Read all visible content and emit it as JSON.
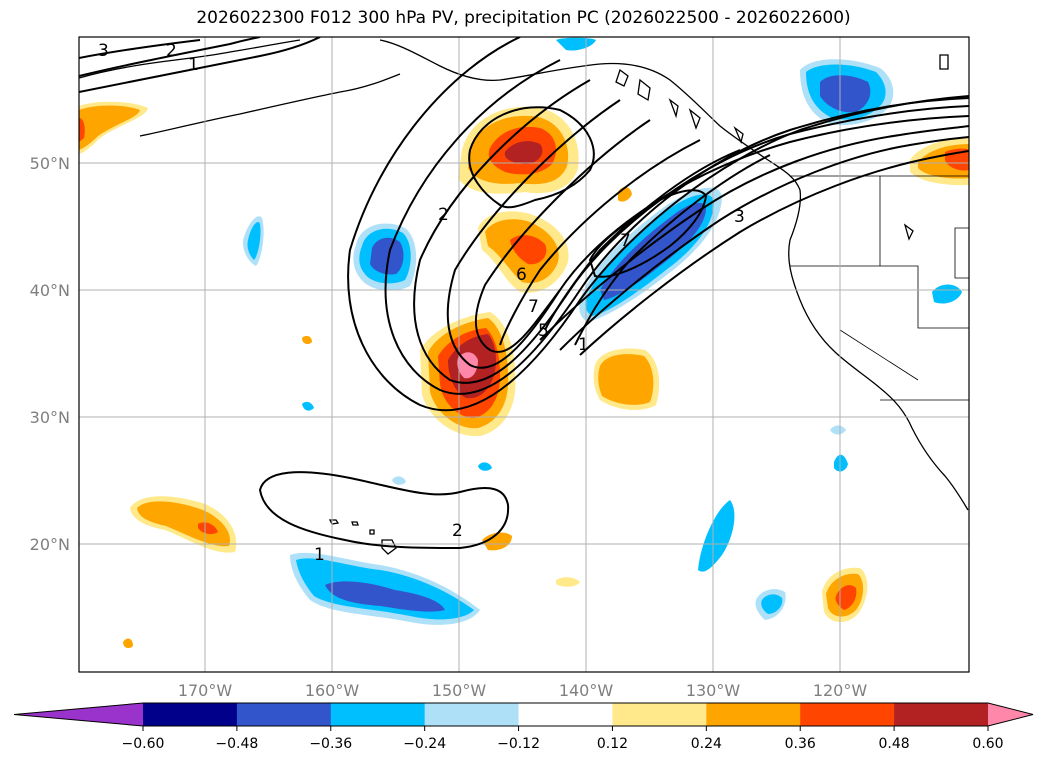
{
  "title": "2026022300 F012 300 hPa PV, precipitation PC (2026022500 - 2026022600)",
  "lat_labels": [
    "50°N",
    "40°N",
    "30°N",
    "20°N"
  ],
  "lon_labels": [
    "170°W",
    "160°W",
    "150°W",
    "140°W",
    "130°W",
    "120°W"
  ],
  "colorbar": {
    "ticks": [
      "−0.60",
      "−0.48",
      "−0.36",
      "−0.24",
      "−0.12",
      "0.12",
      "0.24",
      "0.36",
      "0.48",
      "0.60"
    ],
    "levels": [
      -0.6,
      -0.48,
      -0.36,
      -0.24,
      -0.12,
      0.12,
      0.24,
      0.36,
      0.48,
      0.6
    ],
    "colors": [
      "#9933cc",
      "#00008b",
      "#3355cc",
      "#00bfff",
      "#aee0f8",
      "#ffffff",
      "#ffe98a",
      "#ffa500",
      "#ff4500",
      "#b22222",
      "#ff88aa"
    ]
  },
  "pv_contour_labels": [
    "3",
    "2",
    "1",
    "2",
    "6",
    "7",
    "5",
    "1",
    "7",
    "3",
    "2",
    "1"
  ],
  "map_extent": {
    "lon_min": -180,
    "lon_max": -110,
    "lat_min": 10,
    "lat_max": 60
  }
}
